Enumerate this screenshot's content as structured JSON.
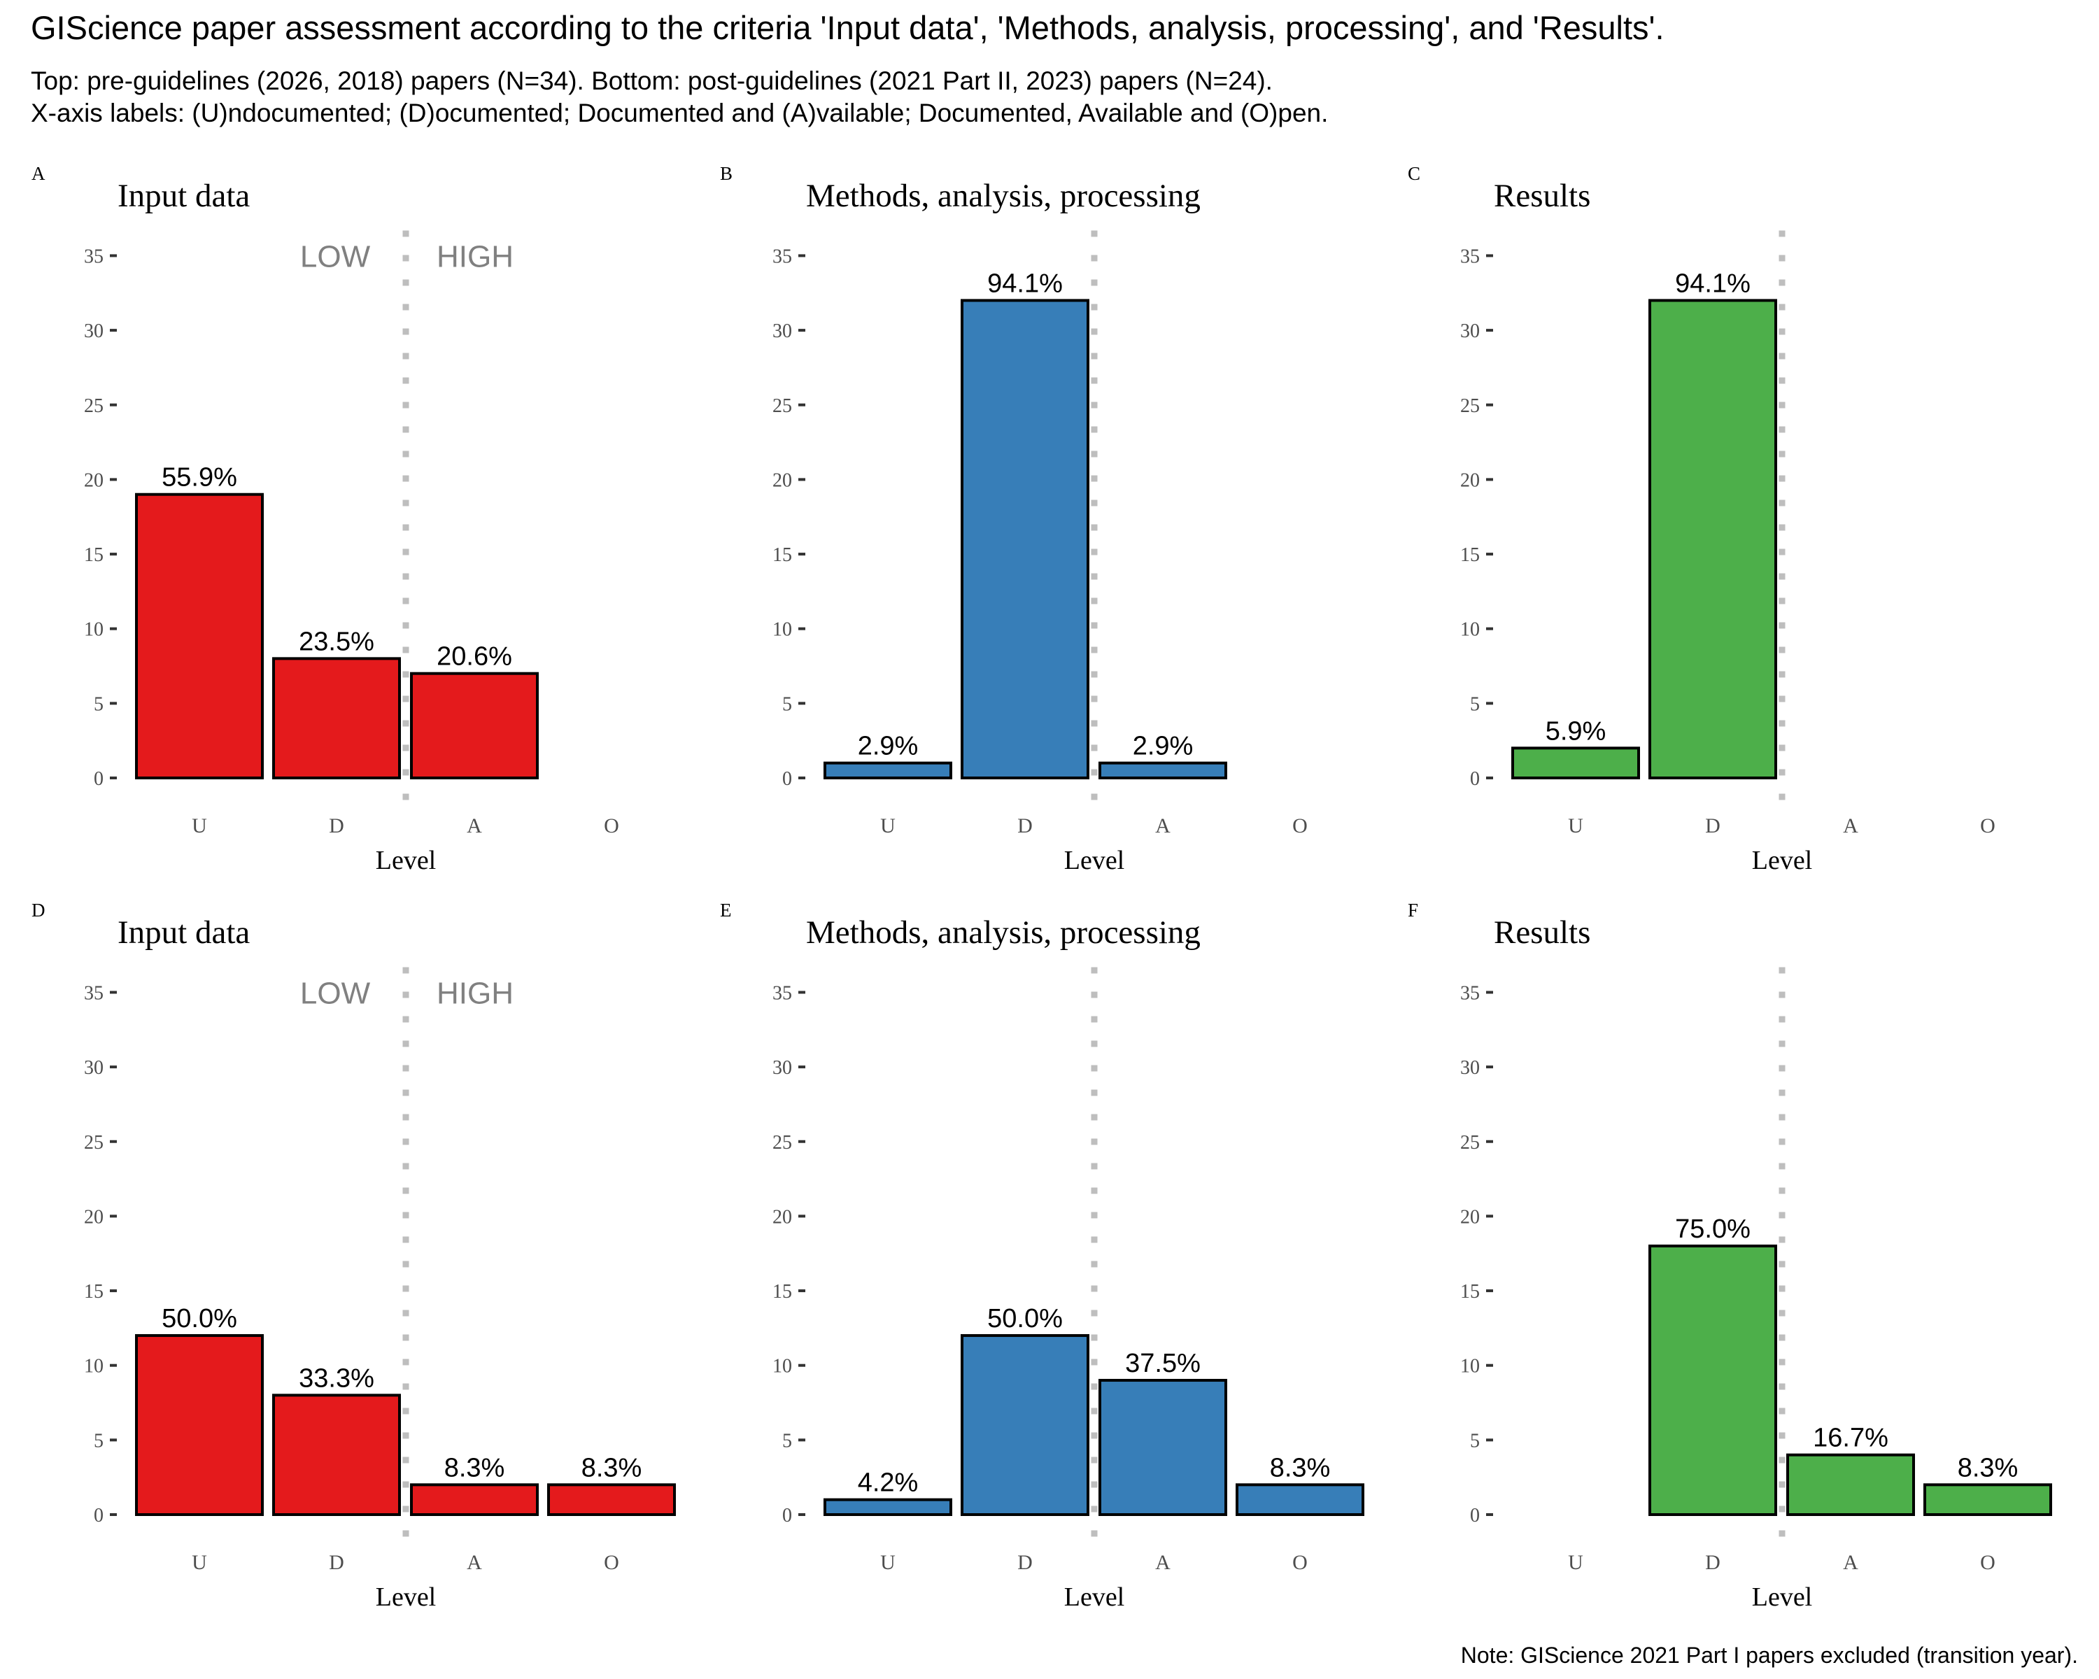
{
  "header": {
    "title": "GIScience paper assessment according to the criteria 'Input data', 'Methods, analysis, processing', and 'Results'.",
    "subtitle_line1": "Top: pre-guidelines (2026, 2018) papers (N=34). Bottom: post-guidelines (2021 Part II, 2023) papers (N=24).",
    "subtitle_line2": "X-axis labels: (U)ndocumented; (D)ocumented; Documented and (A)vailable; Documented, Available and (O)pen."
  },
  "footer": {
    "note": "Note: GIScience 2021 Part I papers excluded (transition year)."
  },
  "chart_data": [
    {
      "type": "bar",
      "panel": "A",
      "title": "Input data",
      "group": "pre-guidelines",
      "n": 34,
      "categories": [
        "U",
        "D",
        "A",
        "O"
      ],
      "values": [
        19,
        8,
        7,
        0
      ],
      "labels": [
        "55.9%",
        "23.5%",
        "20.6%",
        null
      ],
      "color": "#E41A1C",
      "xlabel": "Level",
      "ylabel": "",
      "ylim": [
        0,
        35
      ],
      "yticks": [
        0,
        5,
        10,
        15,
        20,
        25,
        30,
        35
      ],
      "annotations": [
        "LOW",
        "HIGH"
      ],
      "divider": "between D and A (dotted)"
    },
    {
      "type": "bar",
      "panel": "B",
      "title": "Methods, analysis, processing",
      "group": "pre-guidelines",
      "n": 34,
      "categories": [
        "U",
        "D",
        "A",
        "O"
      ],
      "values": [
        1,
        32,
        1,
        0
      ],
      "labels": [
        "2.9%",
        "94.1%",
        "2.9%",
        null
      ],
      "color": "#377EB8",
      "xlabel": "Level",
      "ylabel": "",
      "ylim": [
        0,
        35
      ],
      "yticks": [
        0,
        5,
        10,
        15,
        20,
        25,
        30,
        35
      ],
      "annotations": [],
      "divider": "between D and A (dotted)"
    },
    {
      "type": "bar",
      "panel": "C",
      "title": "Results",
      "group": "pre-guidelines",
      "n": 34,
      "categories": [
        "U",
        "D",
        "A",
        "O"
      ],
      "values": [
        2,
        32,
        0,
        0
      ],
      "labels": [
        "5.9%",
        "94.1%",
        null,
        null
      ],
      "color": "#4DAF4A",
      "xlabel": "Level",
      "ylabel": "",
      "ylim": [
        0,
        35
      ],
      "yticks": [
        0,
        5,
        10,
        15,
        20,
        25,
        30,
        35
      ],
      "annotations": [],
      "divider": "between D and A (dotted)"
    },
    {
      "type": "bar",
      "panel": "D",
      "title": "Input data",
      "group": "post-guidelines",
      "n": 24,
      "categories": [
        "U",
        "D",
        "A",
        "O"
      ],
      "values": [
        12,
        8,
        2,
        2
      ],
      "labels": [
        "50.0%",
        "33.3%",
        "8.3%",
        "8.3%"
      ],
      "color": "#E41A1C",
      "xlabel": "Level",
      "ylabel": "",
      "ylim": [
        0,
        35
      ],
      "yticks": [
        0,
        5,
        10,
        15,
        20,
        25,
        30,
        35
      ],
      "annotations": [
        "LOW",
        "HIGH"
      ],
      "divider": "between D and A (dotted)"
    },
    {
      "type": "bar",
      "panel": "E",
      "title": "Methods, analysis, processing",
      "group": "post-guidelines",
      "n": 24,
      "categories": [
        "U",
        "D",
        "A",
        "O"
      ],
      "values": [
        1,
        12,
        9,
        2
      ],
      "labels": [
        "4.2%",
        "50.0%",
        "37.5%",
        "8.3%"
      ],
      "color": "#377EB8",
      "xlabel": "Level",
      "ylabel": "",
      "ylim": [
        0,
        35
      ],
      "yticks": [
        0,
        5,
        10,
        15,
        20,
        25,
        30,
        35
      ],
      "annotations": [],
      "divider": "between D and A (dotted)"
    },
    {
      "type": "bar",
      "panel": "F",
      "title": "Results",
      "group": "post-guidelines",
      "n": 24,
      "categories": [
        "U",
        "D",
        "A",
        "O"
      ],
      "values": [
        0,
        18,
        4,
        2
      ],
      "labels": [
        null,
        "75.0%",
        "16.7%",
        "8.3%"
      ],
      "color": "#4DAF4A",
      "xlabel": "Level",
      "ylabel": "",
      "ylim": [
        0,
        35
      ],
      "yticks": [
        0,
        5,
        10,
        15,
        20,
        25,
        30,
        35
      ],
      "annotations": [],
      "divider": "between D and A (dotted)"
    }
  ]
}
